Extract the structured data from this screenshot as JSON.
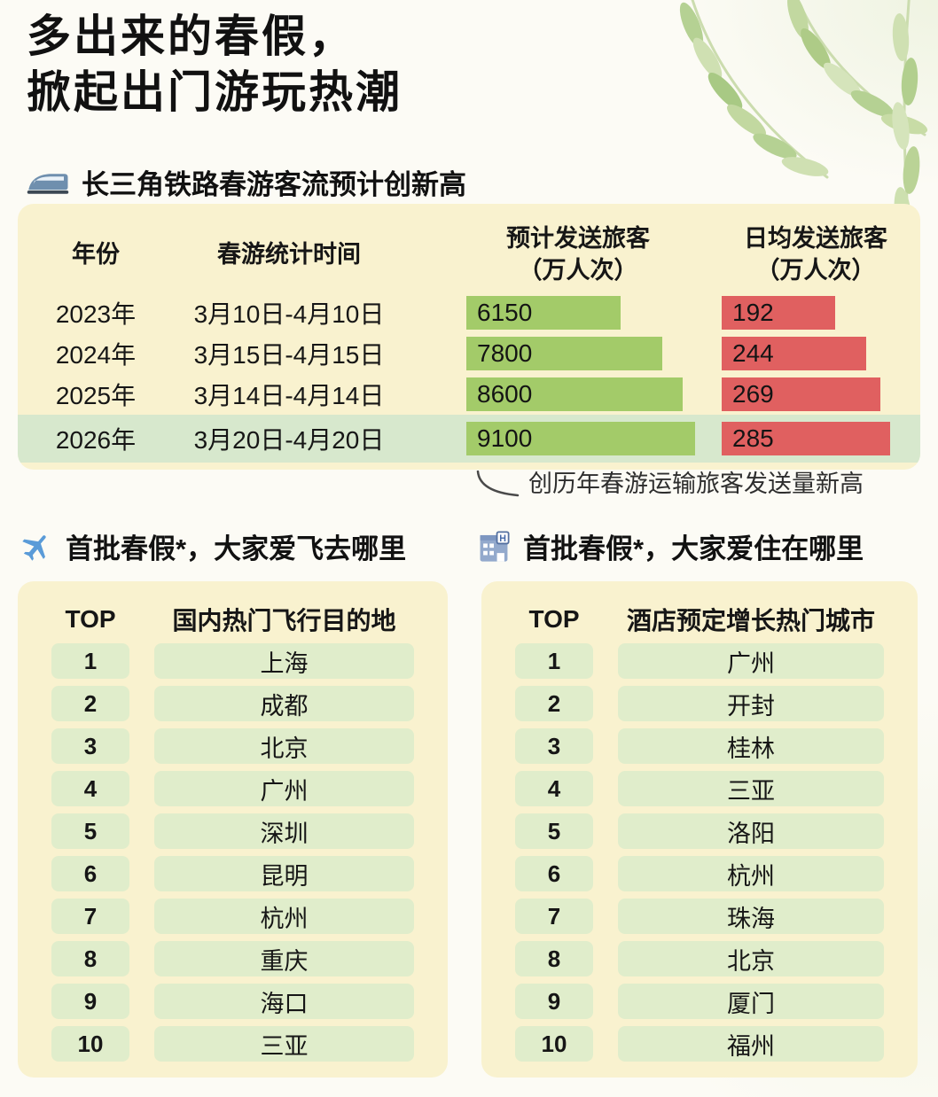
{
  "header": {
    "title_line1": "多出来的春假，",
    "title_line2": "掀起出门游玩热潮"
  },
  "railway": {
    "heading": "长三角铁路春游客流预计创新高",
    "columns": {
      "year": "年份",
      "period": "春游统计时间",
      "expected_line1": "预计发送旅客",
      "expected_line2": "（万人次）",
      "daily_line1": "日均发送旅客",
      "daily_line2": "（万人次）"
    },
    "rows": [
      {
        "year": "2023年",
        "period": "3月10日-4月10日",
        "expected": 6150,
        "daily": 192,
        "highlight": false
      },
      {
        "year": "2024年",
        "period": "3月15日-4月15日",
        "expected": 7800,
        "daily": 244,
        "highlight": false
      },
      {
        "year": "2025年",
        "period": "3月14日-4月14日",
        "expected": 8600,
        "daily": 269,
        "highlight": false
      },
      {
        "year": "2026年",
        "period": "3月20日-4月20日",
        "expected": 9100,
        "daily": 285,
        "highlight": true
      }
    ],
    "annotation": "创历年春游运输旅客发送量新高"
  },
  "flight": {
    "heading": "首批春假*，大家爱飞去哪里",
    "col_rank": "TOP",
    "col_city": "国内热门飞行目的地",
    "rows": [
      {
        "rank": "1",
        "city": "上海"
      },
      {
        "rank": "2",
        "city": "成都"
      },
      {
        "rank": "3",
        "city": "北京"
      },
      {
        "rank": "4",
        "city": "广州"
      },
      {
        "rank": "5",
        "city": "深圳"
      },
      {
        "rank": "6",
        "city": "昆明"
      },
      {
        "rank": "7",
        "city": "杭州"
      },
      {
        "rank": "8",
        "city": "重庆"
      },
      {
        "rank": "9",
        "city": "海口"
      },
      {
        "rank": "10",
        "city": "三亚"
      }
    ]
  },
  "hotel": {
    "heading": "首批春假*，大家爱住在哪里",
    "col_rank": "TOP",
    "col_city": "酒店预定增长热门城市",
    "rows": [
      {
        "rank": "1",
        "city": "广州"
      },
      {
        "rank": "2",
        "city": "开封"
      },
      {
        "rank": "3",
        "city": "桂林"
      },
      {
        "rank": "4",
        "city": "三亚"
      },
      {
        "rank": "5",
        "city": "洛阳"
      },
      {
        "rank": "6",
        "city": "杭州"
      },
      {
        "rank": "7",
        "city": "珠海"
      },
      {
        "rank": "8",
        "city": "北京"
      },
      {
        "rank": "9",
        "city": "厦门"
      },
      {
        "rank": "10",
        "city": "福州"
      }
    ]
  },
  "colors": {
    "card_bg": "#F9F2CF",
    "green_bar": "#A3CB69",
    "red_bar": "#E06060",
    "highlight_row": "#D7E8CD",
    "list_cell_bg": "#E0EDCB",
    "text": "#161616"
  },
  "chart_data": {
    "type": "bar",
    "orientation": "horizontal",
    "title": "长三角铁路春游客流预计创新高",
    "categories": [
      "2023年",
      "2024年",
      "2025年",
      "2026年"
    ],
    "category_periods": [
      "3月10日-4月10日",
      "3月15日-4月15日",
      "3月14日-4月14日",
      "3月20日-4月20日"
    ],
    "series": [
      {
        "name": "预计发送旅客（万人次）",
        "values": [
          6150,
          7800,
          8600,
          9100
        ],
        "color": "#A3CB69"
      },
      {
        "name": "日均发送旅客（万人次）",
        "values": [
          192,
          244,
          269,
          285
        ],
        "color": "#E06060"
      }
    ],
    "annotation": "创历年春游运输旅客发送量新高",
    "highlighted_category": "2026年",
    "grid": false,
    "legend_position": "column-headers"
  }
}
